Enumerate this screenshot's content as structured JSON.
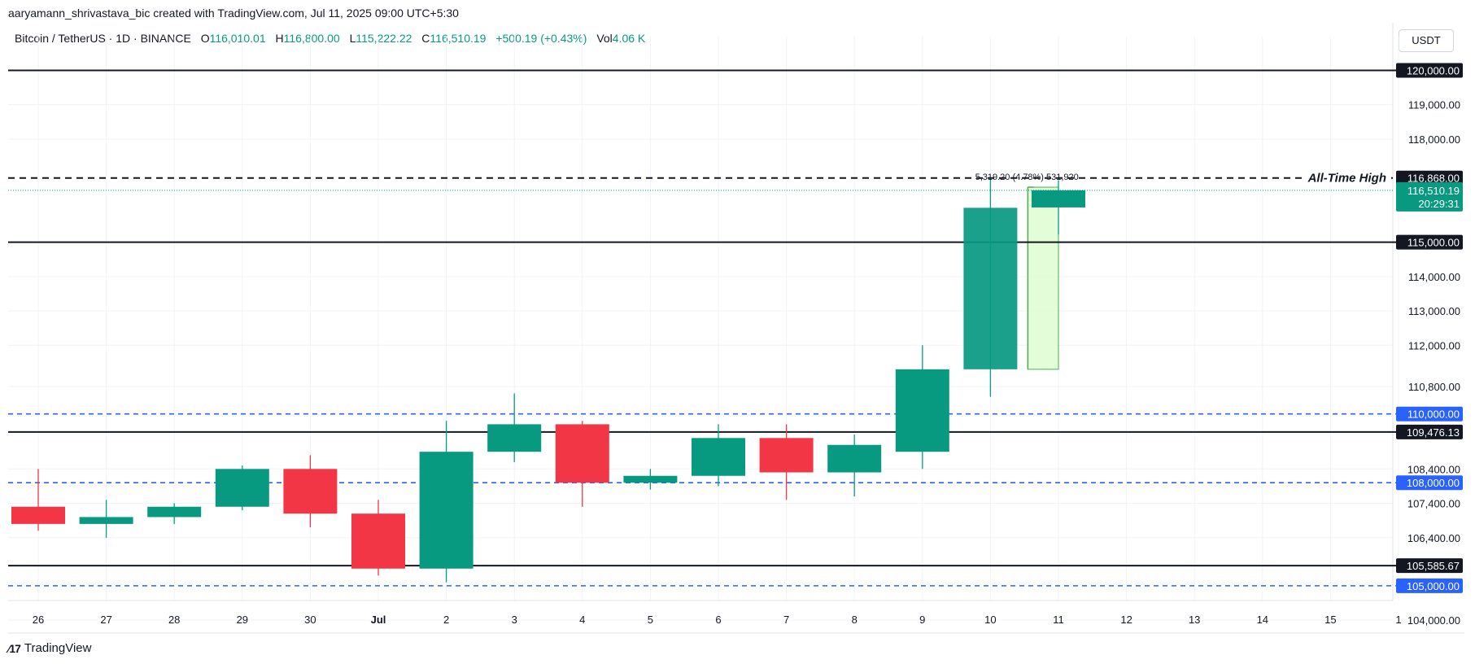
{
  "credit": "aaryamann_shrivastava_bic created with TradingView.com, Jul 11, 2025 09:00 UTC+5:30",
  "header": {
    "symbol": "Bitcoin / TetherUS · 1D · BINANCE",
    "o_label": "O",
    "o_value": "116,010.01",
    "h_label": "H",
    "h_value": "116,800.00",
    "l_label": "L",
    "l_value": "115,222.22",
    "c_label": "C",
    "c_value": "116,510.19",
    "change": "+500.19 (+0.43%)",
    "vol_label": "Vol",
    "vol_value": "4.06 K"
  },
  "currency": "USDT",
  "logo_text": "TradingView",
  "colors": {
    "up": "#089981",
    "down": "#f23645",
    "blue_line": "#2962ff",
    "black_line": "#131722",
    "measure_fill": "#dcfcd0",
    "measure_stroke": "#4caf50"
  },
  "chart_data": {
    "type": "candlestick",
    "ylim": [
      103600,
      121100
    ],
    "x_ticks": [
      "26",
      "27",
      "28",
      "29",
      "30",
      "Jul",
      "2",
      "3",
      "4",
      "5",
      "6",
      "7",
      "8",
      "9",
      "10",
      "11",
      "12",
      "13",
      "14",
      "15",
      "1"
    ],
    "y_ticks": [
      {
        "label": "119,000.00",
        "value": 119000
      },
      {
        "label": "118,000.00",
        "value": 118000
      },
      {
        "label": "114,000.00",
        "value": 114000
      },
      {
        "label": "113,000.00",
        "value": 113000
      },
      {
        "label": "112,000.00",
        "value": 112000
      },
      {
        "label": "110,800.00",
        "value": 110800
      },
      {
        "label": "108,400.00",
        "value": 108400
      },
      {
        "label": "107,400.00",
        "value": 107400
      },
      {
        "label": "106,400.00",
        "value": 106400
      },
      {
        "label": "104,000.00",
        "value": 104000
      }
    ],
    "candles": [
      {
        "x": "Jun 26",
        "open": 107300,
        "high": 108400,
        "low": 106600,
        "close": 106800
      },
      {
        "x": "Jun 27",
        "open": 106800,
        "high": 107500,
        "low": 106400,
        "close": 107000
      },
      {
        "x": "Jun 28",
        "open": 107000,
        "high": 107400,
        "low": 106800,
        "close": 107300
      },
      {
        "x": "Jun 29",
        "open": 107300,
        "high": 108500,
        "low": 107200,
        "close": 108400
      },
      {
        "x": "Jun 30",
        "open": 108400,
        "high": 108800,
        "low": 106700,
        "close": 107100
      },
      {
        "x": "Jul 1",
        "open": 107100,
        "high": 107500,
        "low": 105300,
        "close": 105500
      },
      {
        "x": "Jul 2",
        "open": 105500,
        "high": 109800,
        "low": 105100,
        "close": 108900
      },
      {
        "x": "Jul 3",
        "open": 108900,
        "high": 110600,
        "low": 108600,
        "close": 109700
      },
      {
        "x": "Jul 4",
        "open": 109700,
        "high": 109800,
        "low": 107300,
        "close": 108000
      },
      {
        "x": "Jul 5",
        "open": 108000,
        "high": 108400,
        "low": 107800,
        "close": 108200
      },
      {
        "x": "Jul 6",
        "open": 108200,
        "high": 109700,
        "low": 107900,
        "close": 109300
      },
      {
        "x": "Jul 7",
        "open": 109300,
        "high": 109700,
        "low": 107500,
        "close": 108300
      },
      {
        "x": "Jul 8",
        "open": 108300,
        "high": 109400,
        "low": 107600,
        "close": 109100
      },
      {
        "x": "Jul 9",
        "open": 108900,
        "high": 112000,
        "low": 108400,
        "close": 111300
      },
      {
        "x": "Jul 10",
        "open": 111300,
        "high": 116868,
        "low": 110500,
        "close": 116000
      },
      {
        "x": "Jul 11",
        "open": 116010.01,
        "high": 116800,
        "low": 115222.22,
        "close": 116510.19
      }
    ],
    "levels": [
      {
        "value": 120000,
        "label": "120,000.00",
        "style": "solid"
      },
      {
        "value": 116868,
        "label": "116,868.00",
        "style": "dashed",
        "annotation": "All-Time High"
      },
      {
        "value": 115000,
        "label": "115,000.00",
        "style": "solid"
      },
      {
        "value": 110000,
        "label": "110,000.00",
        "style": "dashed-blue"
      },
      {
        "value": 109476.13,
        "label": "109,476.13",
        "style": "solid"
      },
      {
        "value": 108000,
        "label": "108,000.00",
        "style": "dashed-blue"
      },
      {
        "value": 105585.67,
        "label": "105,585.67",
        "style": "solid"
      },
      {
        "value": 105000,
        "label": "105,000.00",
        "style": "dashed-blue"
      }
    ],
    "current_price": {
      "value": 116510.19,
      "label": "116,510.19",
      "countdown": "20:29:31"
    },
    "measure": {
      "from_index": 14.55,
      "to_index": 15.0,
      "low": 111300,
      "high": 116600,
      "label": "5,319.20 (4.78%) 531,920"
    }
  }
}
